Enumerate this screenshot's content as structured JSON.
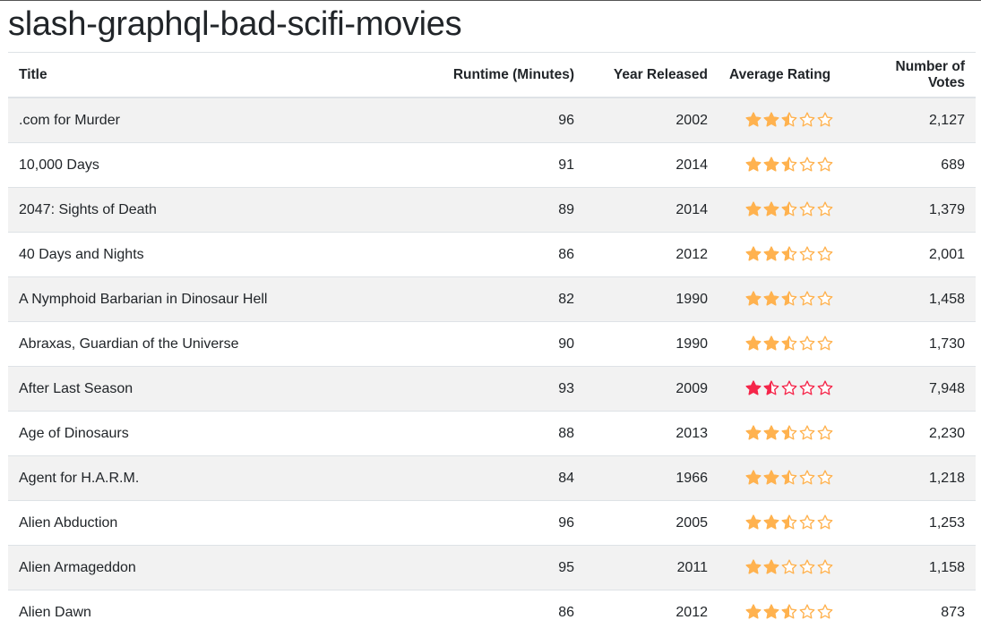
{
  "page_title": "slash-graphql-bad-scifi-movies",
  "colors": {
    "star_default": "#ffb24f",
    "star_low": "#f5264a"
  },
  "columns": [
    "Title",
    "Runtime (Minutes)",
    "Year Released",
    "Average Rating",
    "Number of Votes"
  ],
  "rows": [
    {
      "title": ".com for Murder",
      "runtime": "96",
      "year": "2002",
      "rating": 2.5,
      "votes": "2,127"
    },
    {
      "title": "10,000 Days",
      "runtime": "91",
      "year": "2014",
      "rating": 2.5,
      "votes": "689"
    },
    {
      "title": "2047: Sights of Death",
      "runtime": "89",
      "year": "2014",
      "rating": 2.5,
      "votes": "1,379"
    },
    {
      "title": "40 Days and Nights",
      "runtime": "86",
      "year": "2012",
      "rating": 2.5,
      "votes": "2,001"
    },
    {
      "title": "A Nymphoid Barbarian in Dinosaur Hell",
      "runtime": "82",
      "year": "1990",
      "rating": 2.5,
      "votes": "1,458"
    },
    {
      "title": "Abraxas, Guardian of the Universe",
      "runtime": "90",
      "year": "1990",
      "rating": 2.5,
      "votes": "1,730"
    },
    {
      "title": "After Last Season",
      "runtime": "93",
      "year": "2009",
      "rating": 1.5,
      "votes": "7,948"
    },
    {
      "title": "Age of Dinosaurs",
      "runtime": "88",
      "year": "2013",
      "rating": 2.5,
      "votes": "2,230"
    },
    {
      "title": "Agent for H.A.R.M.",
      "runtime": "84",
      "year": "1966",
      "rating": 2.5,
      "votes": "1,218"
    },
    {
      "title": "Alien Abduction",
      "runtime": "96",
      "year": "2005",
      "rating": 2.5,
      "votes": "1,253"
    },
    {
      "title": "Alien Armageddon",
      "runtime": "95",
      "year": "2011",
      "rating": 2.0,
      "votes": "1,158"
    },
    {
      "title": "Alien Dawn",
      "runtime": "86",
      "year": "2012",
      "rating": 2.5,
      "votes": "873"
    }
  ]
}
